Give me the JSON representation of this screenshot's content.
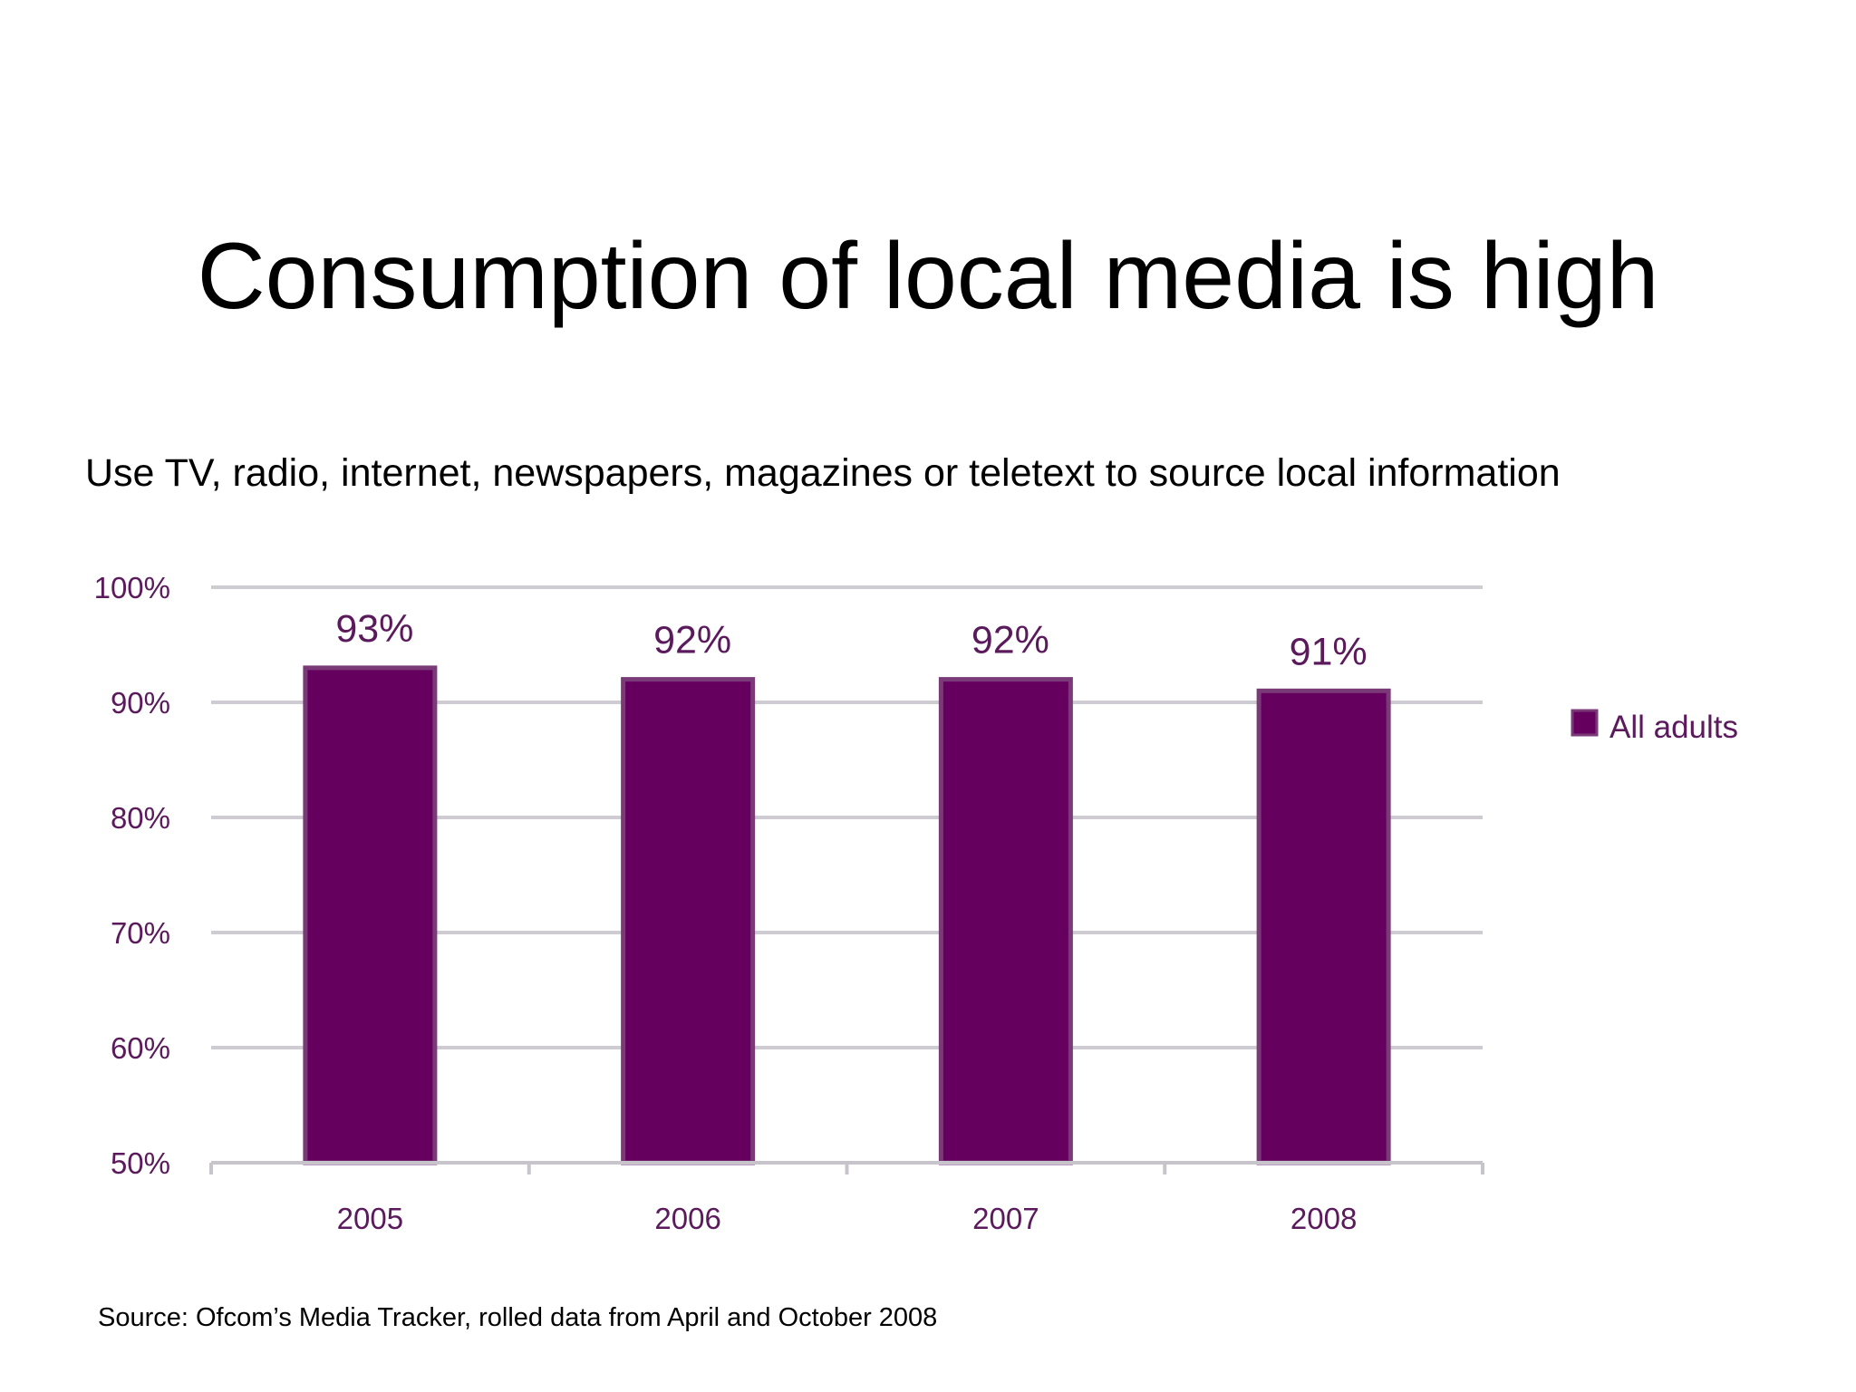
{
  "slide": {
    "title": "Consumption of local media is high",
    "subtitle": "Use TV, radio, internet, newspapers, magazines or teletext to source local information",
    "source": "Source: Ofcom’s Media Tracker, rolled data from April and October 2008"
  },
  "colors": {
    "bar": "#66005f",
    "bar_border": "#7a3a78",
    "text_accent": "#5a1a5c",
    "gridline": "#cfcbd3",
    "axis": "#c8c4cc"
  },
  "chart_data": {
    "type": "bar",
    "categories": [
      "2005",
      "2006",
      "2007",
      "2008"
    ],
    "series": [
      {
        "name": "All adults",
        "values": [
          93,
          92,
          92,
          91
        ],
        "labels": [
          "93%",
          "92%",
          "92%",
          "91%"
        ]
      }
    ],
    "ylim": [
      50,
      100
    ],
    "yticks": [
      50,
      60,
      70,
      80,
      90,
      100
    ],
    "ytick_labels": [
      "50%",
      "60%",
      "70%",
      "80%",
      "90%",
      "100%"
    ],
    "grid": true,
    "legend": "right"
  }
}
